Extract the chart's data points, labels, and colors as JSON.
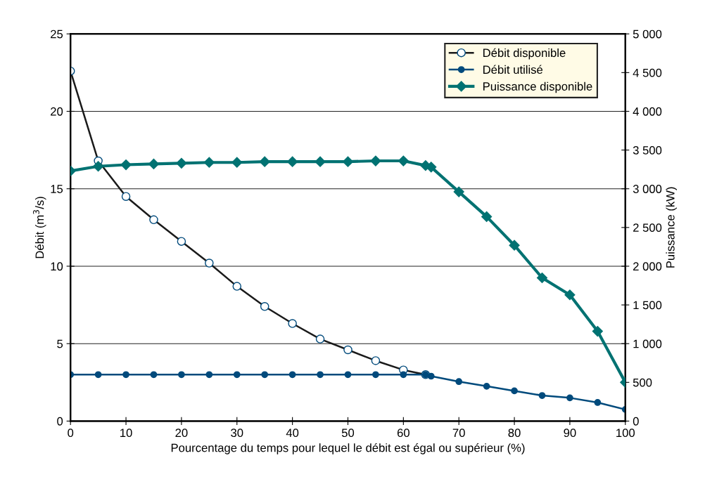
{
  "chart_data": {
    "type": "line",
    "xlabel": "Pourcentage du temps pour lequel le débit est égal ou supérieur (%)",
    "ylabel": "Débit (m$^{3}$/s)",
    "y2label": "Puissance (kW)",
    "xlim": [
      0,
      100
    ],
    "xticks": [
      0,
      10,
      20,
      30,
      40,
      50,
      60,
      70,
      80,
      90,
      100
    ],
    "ylim": [
      0,
      25
    ],
    "yticks": [
      0,
      5,
      10,
      15,
      20,
      25
    ],
    "y2lim": [
      0,
      5000
    ],
    "y2ticks": [
      0,
      500,
      {
        "value": 1000,
        "label": "1 000"
      },
      {
        "value": 1500,
        "label": "1 500"
      },
      {
        "value": 2000,
        "label": "2 000"
      },
      {
        "value": 2500,
        "label": "2 500"
      },
      {
        "value": 3000,
        "label": "3 000"
      },
      {
        "value": 3500,
        "label": "3 500"
      },
      {
        "value": 4000,
        "label": "4 000"
      },
      {
        "value": 4500,
        "label": "4 500"
      },
      {
        "value": 5000,
        "label": "5 000"
      }
    ],
    "grid": "y",
    "legend": "top right",
    "series": [
      {
        "name": "Débit disponible",
        "color": "#1a1a1a",
        "marker": "circle",
        "x": [
          0,
          5,
          10,
          15,
          20,
          25,
          30,
          35,
          40,
          45,
          50,
          55,
          60,
          64
        ],
        "values": [
          22.6,
          16.8,
          14.5,
          13.0,
          11.6,
          10.2,
          8.7,
          7.4,
          6.3,
          5.3,
          4.6,
          3.9,
          3.3,
          3.0
        ]
      },
      {
        "name": "Débit utilisé",
        "color": "#004a7c",
        "marker": "circle",
        "x": [
          0,
          5,
          10,
          15,
          20,
          25,
          30,
          35,
          40,
          45,
          50,
          55,
          60,
          64,
          65,
          70,
          75,
          80,
          85,
          90,
          95,
          100
        ],
        "values": [
          3.0,
          3.0,
          3.0,
          3.0,
          3.0,
          3.0,
          3.0,
          3.0,
          3.0,
          3.0,
          3.0,
          3.0,
          3.0,
          3.0,
          2.9,
          2.55,
          2.25,
          1.95,
          1.65,
          1.5,
          1.2,
          0.75
        ]
      },
      {
        "name": "Puissance disponible",
        "color": "#007272",
        "marker": "diamond",
        "axis": "y2",
        "x": [
          0,
          5,
          10,
          15,
          20,
          25,
          30,
          35,
          40,
          45,
          50,
          55,
          60,
          64,
          65,
          70,
          75,
          80,
          85,
          90,
          95,
          100
        ],
        "values": [
          3230,
          3290,
          3310,
          3320,
          3330,
          3340,
          3340,
          3350,
          3350,
          3350,
          3350,
          3360,
          3360,
          3300,
          3280,
          2960,
          2640,
          2270,
          1850,
          1630,
          1160,
          500
        ]
      }
    ]
  }
}
